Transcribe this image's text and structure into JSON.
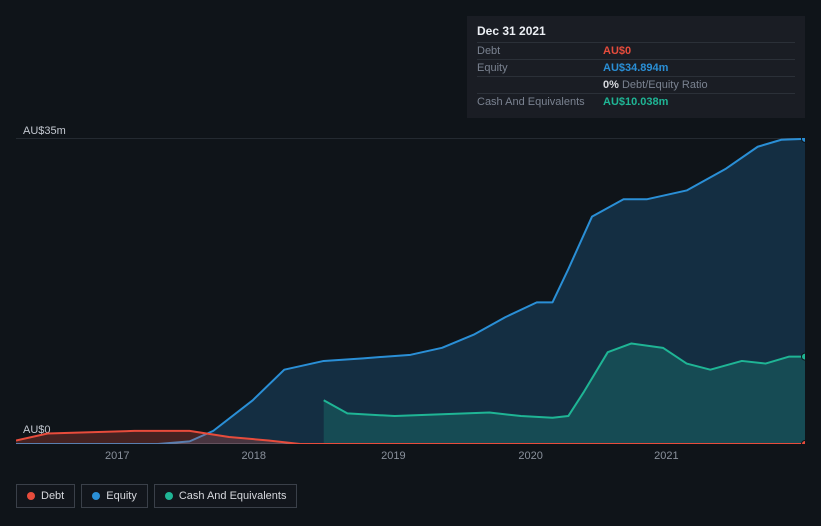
{
  "tooltip": {
    "date": "Dec 31 2021",
    "rows": {
      "debt": {
        "label": "Debt",
        "value": "AU$0"
      },
      "equity": {
        "label": "Equity",
        "value": "AU$34.894m"
      },
      "ratio": {
        "value": "0%",
        "label": "Debt/Equity Ratio"
      },
      "cash": {
        "label": "Cash And Equivalents",
        "value": "AU$10.038m"
      }
    }
  },
  "chart": {
    "type": "area-line",
    "background_color": "#0f1419",
    "grid_color": "#3a4049",
    "axis_color": "#6c727c",
    "text_color": "#c3c8d0",
    "xtick_color": "#8a919c",
    "ylim": [
      0,
      35
    ],
    "y_top_label": "AU$35m",
    "y_bottom_label": "AU$0",
    "years": [
      "2017",
      "2018",
      "2019",
      "2020",
      "2021"
    ],
    "year_positions": [
      0.128,
      0.301,
      0.478,
      0.652,
      0.824
    ],
    "series": {
      "debt": {
        "color": "#e74c3c",
        "fill_opacity": 0.25,
        "points": [
          [
            0.0,
            0.4
          ],
          [
            0.04,
            1.2
          ],
          [
            0.15,
            1.5
          ],
          [
            0.22,
            1.5
          ],
          [
            0.27,
            0.8
          ],
          [
            0.32,
            0.4
          ],
          [
            0.36,
            0.0
          ],
          [
            1.0,
            0.0
          ]
        ]
      },
      "equity": {
        "color": "#2a8fd6",
        "fill_opacity": 0.22,
        "points": [
          [
            0.0,
            0.0
          ],
          [
            0.18,
            0.0
          ],
          [
            0.22,
            0.3
          ],
          [
            0.25,
            1.5
          ],
          [
            0.3,
            5.0
          ],
          [
            0.34,
            8.5
          ],
          [
            0.39,
            9.5
          ],
          [
            0.44,
            9.8
          ],
          [
            0.5,
            10.2
          ],
          [
            0.54,
            11.0
          ],
          [
            0.58,
            12.5
          ],
          [
            0.62,
            14.5
          ],
          [
            0.66,
            16.2
          ],
          [
            0.68,
            16.2
          ],
          [
            0.7,
            20.0
          ],
          [
            0.73,
            26.0
          ],
          [
            0.77,
            28.0
          ],
          [
            0.8,
            28.0
          ],
          [
            0.85,
            29.0
          ],
          [
            0.9,
            31.5
          ],
          [
            0.94,
            34.0
          ],
          [
            0.97,
            34.8
          ],
          [
            1.0,
            34.9
          ]
        ]
      },
      "cash": {
        "color": "#1fb595",
        "fill_opacity": 0.22,
        "points": [
          [
            0.39,
            5.0
          ],
          [
            0.42,
            3.5
          ],
          [
            0.48,
            3.2
          ],
          [
            0.54,
            3.4
          ],
          [
            0.6,
            3.6
          ],
          [
            0.64,
            3.2
          ],
          [
            0.68,
            3.0
          ],
          [
            0.7,
            3.2
          ],
          [
            0.72,
            6.0
          ],
          [
            0.75,
            10.5
          ],
          [
            0.78,
            11.5
          ],
          [
            0.82,
            11.0
          ],
          [
            0.85,
            9.2
          ],
          [
            0.88,
            8.5
          ],
          [
            0.92,
            9.5
          ],
          [
            0.95,
            9.2
          ],
          [
            0.98,
            10.0
          ],
          [
            1.0,
            10.0
          ]
        ]
      }
    },
    "end_markers": [
      {
        "x": 1.0,
        "y": 34.9,
        "color": "#2a8fd6"
      },
      {
        "x": 1.0,
        "y": 10.0,
        "color": "#1fb595"
      },
      {
        "x": 1.0,
        "y": 0.0,
        "color": "#e74c3c"
      }
    ]
  },
  "legend": {
    "debt": {
      "label": "Debt",
      "color": "#e74c3c"
    },
    "equity": {
      "label": "Equity",
      "color": "#2a8fd6"
    },
    "cash": {
      "label": "Cash And Equivalents",
      "color": "#1fb595"
    }
  }
}
